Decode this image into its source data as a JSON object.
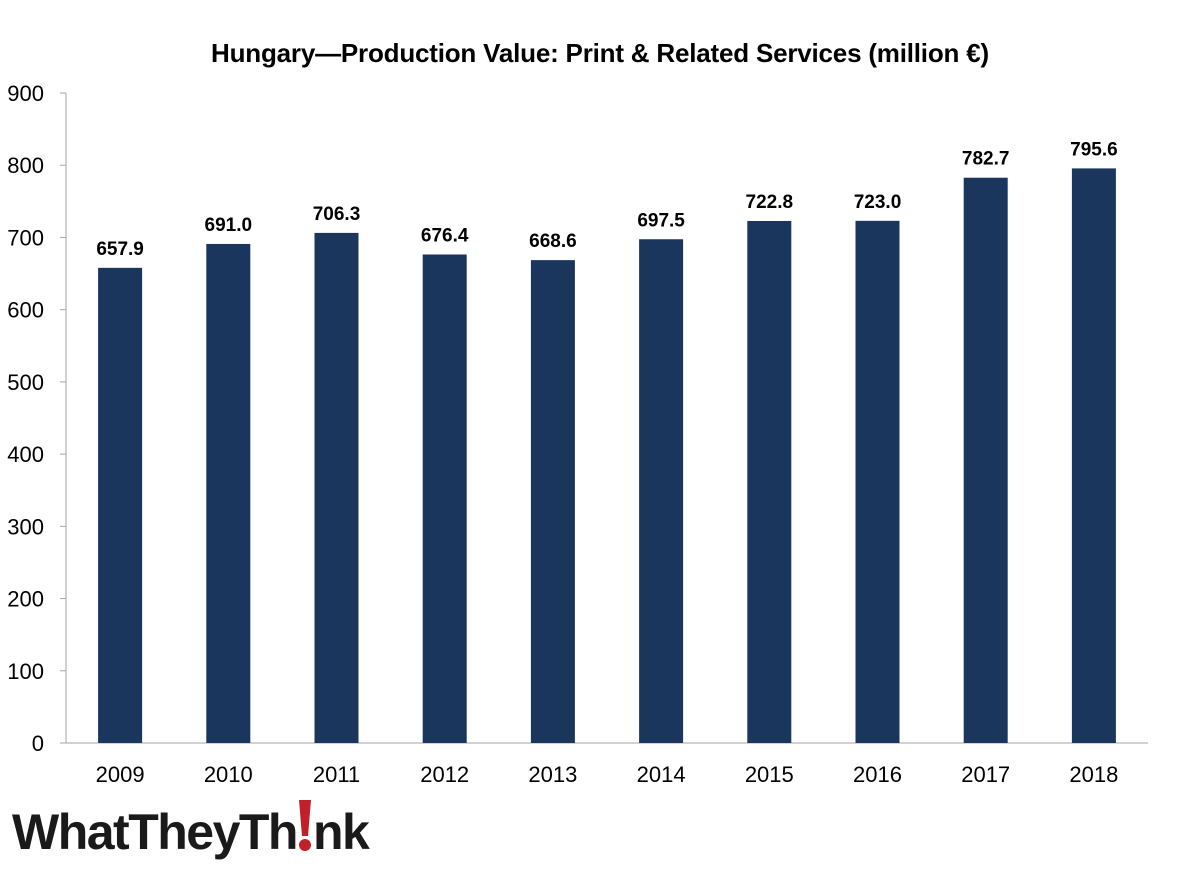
{
  "chart_data": {
    "type": "bar",
    "title": "Hungary—Production Value: Print & Related Services  (million €)",
    "xlabel": "",
    "ylabel": "",
    "categories": [
      "2009",
      "2010",
      "2011",
      "2012",
      "2013",
      "2014",
      "2015",
      "2016",
      "2017",
      "2018"
    ],
    "values": [
      657.9,
      691.0,
      706.3,
      676.4,
      668.6,
      697.5,
      722.8,
      723.0,
      782.7,
      795.6
    ],
    "data_labels": [
      "657.9",
      "691.0",
      "706.3",
      "676.4",
      "668.6",
      "697.5",
      "722.8",
      "723.0",
      "782.7",
      "795.6"
    ],
    "ylim": [
      0,
      900
    ],
    "yticks": [
      0,
      100,
      200,
      300,
      400,
      500,
      600,
      700,
      800,
      900
    ],
    "grid": false,
    "legend": "none",
    "bar_color": "#1b365d"
  },
  "branding": {
    "logo_text_left": "WhatTheyTh",
    "logo_text_right": "nk",
    "logo_text": "WhatTheyThink",
    "accent_color": "#c0202a"
  }
}
